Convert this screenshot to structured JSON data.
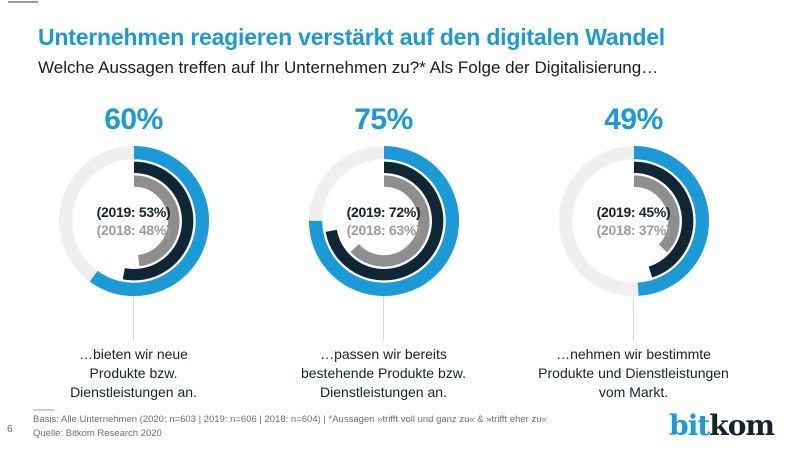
{
  "chart_data": {
    "type": "donut",
    "title": "Unternehmen reagieren verstärkt auf den digitalen Wandel",
    "subtitle": "Welche Aussagen treffen auf Ihr Unternehmen zu?* Als Folge der Digitalisierung…",
    "unit": "%",
    "rings_outer_to_inner": [
      "2020",
      "2019",
      "2018"
    ],
    "start_angle": "top",
    "direction": "clockwise",
    "colors": {
      "accent_blue": "#1a9ad6",
      "ring_2020": "#1a9ad6",
      "ring_2019": "#0f2634",
      "ring_2018": "#8e8e8e",
      "ring_background": "#efefef",
      "text_dark": "#14232e",
      "text_gray_2018": "#9c9c9c",
      "footer_gray": "#6f6f6f"
    },
    "items": [
      {
        "headline": "60%",
        "values": {
          "2020": 60,
          "2019": 53,
          "2018": 48
        },
        "center_lines": [
          "(2019: 53%)",
          "(2018: 48%)"
        ],
        "label_lines": [
          "…bieten wir neue",
          "Produkte bzw.",
          "Dienstleistungen an."
        ]
      },
      {
        "headline": "75%",
        "values": {
          "2020": 75,
          "2019": 72,
          "2018": 63
        },
        "center_lines": [
          "(2019: 72%)",
          "(2018: 63%)"
        ],
        "label_lines": [
          "…passen wir bereits",
          "bestehende Produkte bzw.",
          "Dienstleistungen an."
        ]
      },
      {
        "headline": "49%",
        "values": {
          "2020": 49,
          "2019": 45,
          "2018": 37
        },
        "center_lines": [
          "(2019: 45%)",
          "(2018: 37%)"
        ],
        "label_lines": [
          "…nehmen wir bestimmte",
          "Produkte und Dienstleistungen",
          "vom Markt."
        ]
      }
    ]
  },
  "footer": {
    "page_number": "6",
    "basis": "Basis: Alle Unternehmen (2020: n=603 | 2019: n=606 | 2018: n=604) | *Aussagen »trifft voll und ganz zu« & »trifft eher zu«",
    "source": "Quelle: Bitkom Research 2020"
  },
  "logo": {
    "part1": "bit",
    "part2": "kom"
  }
}
